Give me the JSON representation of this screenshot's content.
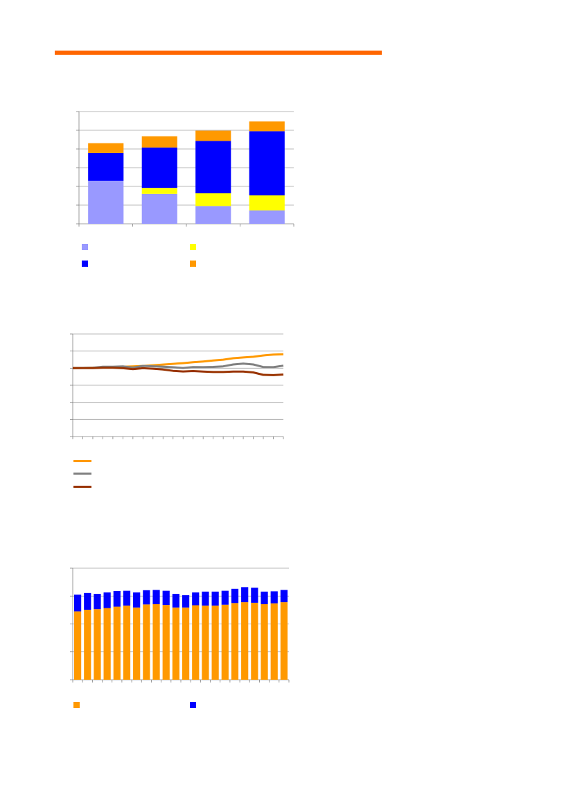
{
  "page": {
    "rule_color": "#ff6600"
  },
  "chart_data": [
    {
      "type": "bar",
      "stacked": true,
      "categories": [
        "",
        "",
        "",
        ""
      ],
      "series": [
        {
          "color": "#9999ff",
          "values": [
            2.3,
            1.6,
            0.95,
            0.72
          ]
        },
        {
          "color": "#ffff00",
          "values": [
            0,
            0.32,
            0.68,
            0.8
          ]
        },
        {
          "color": "#0000ff",
          "values": [
            1.48,
            2.16,
            2.8,
            3.43
          ]
        },
        {
          "color": "#ff9900",
          "values": [
            0.53,
            0.6,
            0.55,
            0.52
          ]
        }
      ],
      "ylim": [
        0,
        6
      ],
      "ygrid": true,
      "legend_position": "bottom",
      "title": "",
      "xlabel": "",
      "ylabel": ""
    },
    {
      "type": "line",
      "x": [
        1,
        2,
        3,
        4,
        5,
        6,
        7,
        8,
        9,
        10,
        11,
        12,
        13,
        14,
        15,
        16,
        17,
        18,
        19,
        20,
        21,
        22
      ],
      "series": [
        {
          "color": "#ff9900",
          "values": [
            100,
            100.3,
            100.6,
            101.3,
            101.5,
            102.1,
            102.6,
            103.3,
            104.2,
            105.3,
            106.3,
            107.3,
            108.6,
            109.8,
            111.2,
            112.4,
            114.5,
            115.6,
            116.7,
            118.6,
            119.9,
            120.3
          ]
        },
        {
          "color": "#808080",
          "values": [
            100,
            100.3,
            100.6,
            102.2,
            102.2,
            102.6,
            100.8,
            103.3,
            102.8,
            102.2,
            101.4,
            100.2,
            101.7,
            101.5,
            101.9,
            102.7,
            105.4,
            106.6,
            105.4,
            101.7,
            101.5,
            103.7
          ]
        },
        {
          "color": "#993300",
          "values": [
            100,
            100,
            100,
            100.6,
            100.6,
            99.9,
            98.6,
            99.9,
            99.2,
            98,
            96.1,
            95.2,
            95.8,
            95.1,
            94.4,
            94.4,
            95.1,
            95.1,
            93.8,
            90.2,
            89.8,
            90.7
          ]
        }
      ],
      "ylim": [
        0,
        150
      ],
      "ygrid": true,
      "legend_position": "bottom",
      "title": "",
      "xlabel": "",
      "ylabel": ""
    },
    {
      "type": "bar",
      "stacked": true,
      "categories": [
        "",
        "",
        "",
        "",
        "",
        "",
        "",
        "",
        "",
        "",
        "",
        "",
        "",
        "",
        "",
        "",
        "",
        "",
        "",
        "",
        "",
        ""
      ],
      "series": [
        {
          "color": "#ff9900",
          "values": [
            2.45,
            2.51,
            2.53,
            2.57,
            2.62,
            2.66,
            2.59,
            2.7,
            2.71,
            2.68,
            2.59,
            2.59,
            2.67,
            2.66,
            2.66,
            2.69,
            2.75,
            2.78,
            2.76,
            2.71,
            2.74,
            2.78
          ]
        },
        {
          "color": "#0000ff",
          "values": [
            0.6,
            0.6,
            0.55,
            0.56,
            0.56,
            0.53,
            0.54,
            0.51,
            0.51,
            0.51,
            0.49,
            0.44,
            0.46,
            0.5,
            0.5,
            0.5,
            0.51,
            0.54,
            0.54,
            0.45,
            0.43,
            0.44
          ]
        }
      ],
      "ylim": [
        0,
        4
      ],
      "ygrid": true,
      "legend_position": "bottom",
      "title": "",
      "xlabel": "",
      "ylabel": ""
    }
  ]
}
